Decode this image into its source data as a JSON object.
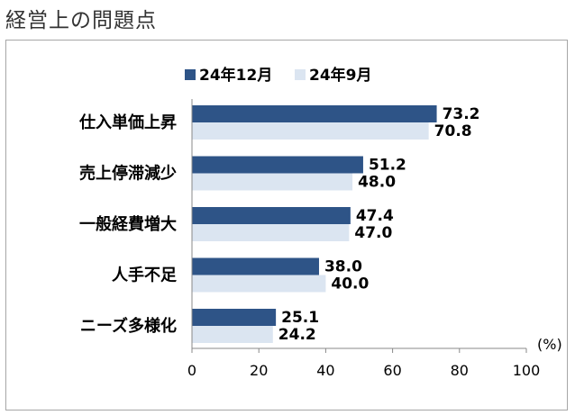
{
  "page_title": "経営上の問題点",
  "chart_data": {
    "type": "bar",
    "orientation": "horizontal",
    "title": "経営上の問題点",
    "categories": [
      "仕入単価上昇",
      "売上停滞減少",
      "一般経費増大",
      "人手不足",
      "ニーズ多様化"
    ],
    "series": [
      {
        "name": "24年12月",
        "color": "#2e5487",
        "values": [
          73.2,
          51.2,
          47.4,
          38.0,
          25.1
        ]
      },
      {
        "name": "24年9月",
        "color": "#dbe5f1",
        "values": [
          70.8,
          48.0,
          47.0,
          40.0,
          24.2
        ]
      }
    ],
    "xlim": [
      0,
      100
    ],
    "xticks": [
      0,
      20,
      40,
      60,
      80,
      100
    ],
    "unit_label": "(%)",
    "legend_position": "top-center",
    "grid": false
  }
}
